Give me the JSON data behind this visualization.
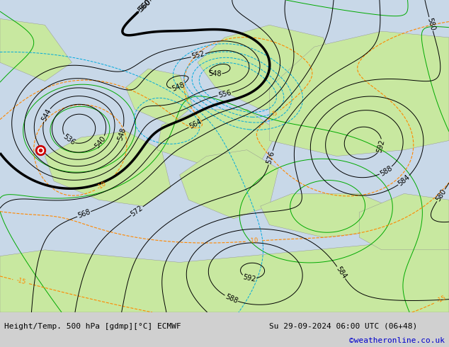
{
  "title_left": "Height/Temp. 500 hPa [gdmp][°C] ECMWF",
  "title_right": "Su 29-09-2024 06:00 UTC (06+48)",
  "credit": "©weatheronline.co.uk",
  "land_color": "#c8e8a0",
  "sea_color": "#c8d8e8",
  "fig_width": 6.34,
  "fig_height": 4.9,
  "dpi": 100,
  "label_fontsize": 7,
  "footer_fontsize": 8,
  "credit_fontsize": 8,
  "credit_color": "#0000cc"
}
